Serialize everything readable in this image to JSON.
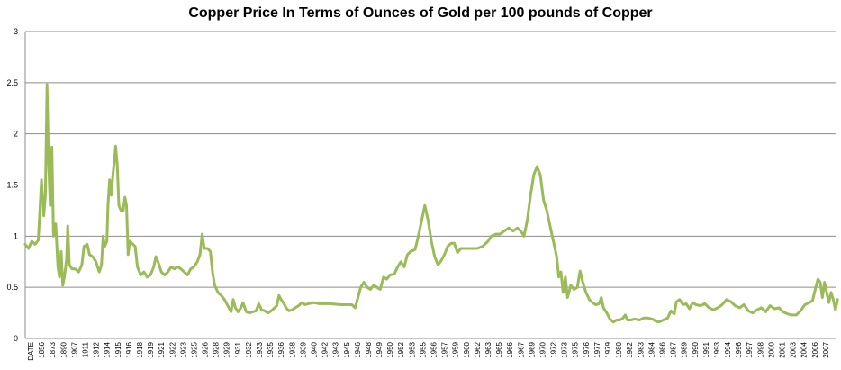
{
  "chart_data": {
    "type": "line",
    "title": "Copper Price In Terms of Ounces of Gold per 100 pounds of Copper",
    "xlabel": "",
    "ylabel": "",
    "ylim": [
      0,
      3
    ],
    "y_ticks": [
      "0",
      "0.5",
      "1",
      "1.5",
      "2",
      "2.5",
      "3"
    ],
    "grid": "horizontal",
    "legend": "none",
    "x_tick_labels": [
      "DATE",
      "1856",
      "1873",
      "1890",
      "1907",
      "1911",
      "1912",
      "1914",
      "1915",
      "1916",
      "1918",
      "1919",
      "1921",
      "1922",
      "1923",
      "1925",
      "1926",
      "1928",
      "1929",
      "1931",
      "1932",
      "1933",
      "1935",
      "1936",
      "1938",
      "1939",
      "1940",
      "1942",
      "1943",
      "1945",
      "1946",
      "1948",
      "1949",
      "1950",
      "1952",
      "1953",
      "1955",
      "1956",
      "1957",
      "1959",
      "1960",
      "1962",
      "1963",
      "1965",
      "1966",
      "1967",
      "1969",
      "1970",
      "1972",
      "1973",
      "1975",
      "1976",
      "1977",
      "1979",
      "1980",
      "1982",
      "1983",
      "1984",
      "1986",
      "1987",
      "1989",
      "1990",
      "1991",
      "1993",
      "1994",
      "1996",
      "1997",
      "1998",
      "2000",
      "2001",
      "2003",
      "2004",
      "2006",
      "2007"
    ],
    "series": [
      {
        "color": "#9bbb59",
        "points": [
          [
            0,
            0.92
          ],
          [
            0.3,
            0.88
          ],
          [
            0.6,
            0.95
          ],
          [
            0.9,
            0.92
          ],
          [
            1.2,
            0.96
          ],
          [
            1.5,
            1.55
          ],
          [
            1.7,
            1.2
          ],
          [
            1.85,
            1.4
          ],
          [
            2.0,
            2.48
          ],
          [
            2.15,
            1.7
          ],
          [
            2.3,
            1.3
          ],
          [
            2.45,
            1.87
          ],
          [
            2.6,
            1.0
          ],
          [
            2.8,
            1.12
          ],
          [
            3.0,
            0.7
          ],
          [
            3.15,
            0.6
          ],
          [
            3.3,
            0.85
          ],
          [
            3.45,
            0.52
          ],
          [
            3.6,
            0.6
          ],
          [
            3.8,
            0.78
          ],
          [
            3.9,
            1.1
          ],
          [
            4.05,
            0.72
          ],
          [
            4.3,
            0.68
          ],
          [
            4.6,
            0.68
          ],
          [
            4.9,
            0.65
          ],
          [
            5.2,
            0.72
          ],
          [
            5.4,
            0.9
          ],
          [
            5.7,
            0.92
          ],
          [
            5.9,
            0.82
          ],
          [
            6.2,
            0.8
          ],
          [
            6.5,
            0.75
          ],
          [
            6.8,
            0.65
          ],
          [
            7.0,
            0.72
          ],
          [
            7.15,
            1.0
          ],
          [
            7.3,
            0.9
          ],
          [
            7.5,
            0.95
          ],
          [
            7.6,
            1.3
          ],
          [
            7.75,
            1.55
          ],
          [
            7.9,
            1.4
          ],
          [
            8.05,
            1.6
          ],
          [
            8.2,
            1.75
          ],
          [
            8.3,
            1.88
          ],
          [
            8.45,
            1.7
          ],
          [
            8.6,
            1.3
          ],
          [
            8.8,
            1.25
          ],
          [
            9.0,
            1.25
          ],
          [
            9.15,
            1.38
          ],
          [
            9.3,
            1.3
          ],
          [
            9.45,
            0.82
          ],
          [
            9.6,
            0.95
          ],
          [
            9.8,
            0.93
          ],
          [
            10.1,
            0.9
          ],
          [
            10.3,
            0.7
          ],
          [
            10.6,
            0.62
          ],
          [
            10.9,
            0.65
          ],
          [
            11.2,
            0.6
          ],
          [
            11.5,
            0.62
          ],
          [
            11.8,
            0.7
          ],
          [
            12.0,
            0.8
          ],
          [
            12.2,
            0.75
          ],
          [
            12.5,
            0.65
          ],
          [
            12.8,
            0.62
          ],
          [
            13.1,
            0.65
          ],
          [
            13.4,
            0.7
          ],
          [
            13.7,
            0.68
          ],
          [
            14.0,
            0.7
          ],
          [
            14.3,
            0.68
          ],
          [
            14.6,
            0.65
          ],
          [
            14.9,
            0.62
          ],
          [
            15.2,
            0.68
          ],
          [
            15.5,
            0.7
          ],
          [
            15.8,
            0.75
          ],
          [
            16.05,
            0.82
          ],
          [
            16.25,
            1.02
          ],
          [
            16.45,
            0.88
          ],
          [
            16.75,
            0.88
          ],
          [
            17.0,
            0.85
          ],
          [
            17.2,
            0.65
          ],
          [
            17.4,
            0.52
          ],
          [
            17.7,
            0.45
          ],
          [
            18.0,
            0.42
          ],
          [
            18.3,
            0.38
          ],
          [
            18.6,
            0.32
          ],
          [
            18.9,
            0.26
          ],
          [
            19.1,
            0.38
          ],
          [
            19.3,
            0.3
          ],
          [
            19.55,
            0.26
          ],
          [
            19.8,
            0.3
          ],
          [
            20.0,
            0.35
          ],
          [
            20.3,
            0.26
          ],
          [
            20.6,
            0.25
          ],
          [
            20.9,
            0.26
          ],
          [
            21.2,
            0.27
          ],
          [
            21.45,
            0.34
          ],
          [
            21.7,
            0.28
          ],
          [
            22.0,
            0.27
          ],
          [
            22.3,
            0.25
          ],
          [
            22.6,
            0.27
          ],
          [
            22.9,
            0.3
          ],
          [
            23.1,
            0.32
          ],
          [
            23.3,
            0.42
          ],
          [
            23.5,
            0.38
          ],
          [
            23.7,
            0.35
          ],
          [
            23.95,
            0.3
          ],
          [
            24.2,
            0.27
          ],
          [
            24.5,
            0.28
          ],
          [
            24.8,
            0.3
          ],
          [
            25.1,
            0.32
          ],
          [
            25.4,
            0.35
          ],
          [
            25.7,
            0.33
          ],
          [
            26.0,
            0.34
          ],
          [
            26.5,
            0.35
          ],
          [
            27.0,
            0.34
          ],
          [
            28.0,
            0.34
          ],
          [
            29.0,
            0.33
          ],
          [
            30.0,
            0.33
          ],
          [
            30.3,
            0.3
          ],
          [
            30.5,
            0.38
          ],
          [
            30.8,
            0.5
          ],
          [
            31.1,
            0.55
          ],
          [
            31.4,
            0.5
          ],
          [
            31.7,
            0.48
          ],
          [
            32.0,
            0.52
          ],
          [
            32.3,
            0.5
          ],
          [
            32.6,
            0.48
          ],
          [
            32.9,
            0.6
          ],
          [
            33.2,
            0.58
          ],
          [
            33.5,
            0.62
          ],
          [
            33.9,
            0.63
          ],
          [
            34.2,
            0.7
          ],
          [
            34.5,
            0.75
          ],
          [
            34.8,
            0.7
          ],
          [
            35.1,
            0.82
          ],
          [
            35.4,
            0.85
          ],
          [
            35.8,
            0.87
          ],
          [
            36.1,
            1.0
          ],
          [
            36.4,
            1.15
          ],
          [
            36.7,
            1.3
          ],
          [
            37.0,
            1.15
          ],
          [
            37.3,
            0.95
          ],
          [
            37.6,
            0.8
          ],
          [
            37.9,
            0.72
          ],
          [
            38.2,
            0.76
          ],
          [
            38.5,
            0.82
          ],
          [
            38.8,
            0.9
          ],
          [
            39.1,
            0.93
          ],
          [
            39.4,
            0.93
          ],
          [
            39.7,
            0.84
          ],
          [
            40.0,
            0.88
          ],
          [
            40.5,
            0.88
          ],
          [
            41.0,
            0.88
          ],
          [
            41.5,
            0.88
          ],
          [
            42.0,
            0.9
          ],
          [
            42.5,
            0.95
          ],
          [
            42.8,
            1.0
          ],
          [
            43.2,
            1.02
          ],
          [
            43.6,
            1.02
          ],
          [
            44.0,
            1.05
          ],
          [
            44.4,
            1.08
          ],
          [
            44.8,
            1.05
          ],
          [
            45.2,
            1.08
          ],
          [
            45.5,
            1.05
          ],
          [
            45.8,
            1.0
          ],
          [
            46.1,
            1.15
          ],
          [
            46.4,
            1.4
          ],
          [
            46.7,
            1.6
          ],
          [
            47.0,
            1.68
          ],
          [
            47.3,
            1.6
          ],
          [
            47.6,
            1.35
          ],
          [
            47.9,
            1.25
          ],
          [
            48.2,
            1.1
          ],
          [
            48.5,
            0.95
          ],
          [
            48.8,
            0.8
          ],
          [
            49.0,
            0.6
          ],
          [
            49.2,
            0.65
          ],
          [
            49.4,
            0.45
          ],
          [
            49.6,
            0.6
          ],
          [
            49.8,
            0.4
          ],
          [
            50.1,
            0.52
          ],
          [
            50.4,
            0.48
          ],
          [
            50.7,
            0.5
          ],
          [
            50.95,
            0.66
          ],
          [
            51.2,
            0.55
          ],
          [
            51.5,
            0.45
          ],
          [
            51.8,
            0.38
          ],
          [
            52.1,
            0.35
          ],
          [
            52.4,
            0.33
          ],
          [
            52.7,
            0.34
          ],
          [
            52.9,
            0.4
          ],
          [
            53.1,
            0.3
          ],
          [
            53.4,
            0.25
          ],
          [
            53.7,
            0.19
          ],
          [
            54.0,
            0.16
          ],
          [
            54.3,
            0.18
          ],
          [
            54.6,
            0.18
          ],
          [
            54.9,
            0.2
          ],
          [
            55.1,
            0.23
          ],
          [
            55.3,
            0.18
          ],
          [
            55.6,
            0.18
          ],
          [
            56.0,
            0.19
          ],
          [
            56.4,
            0.18
          ],
          [
            56.8,
            0.2
          ],
          [
            57.2,
            0.2
          ],
          [
            57.6,
            0.19
          ],
          [
            57.9,
            0.17
          ],
          [
            58.2,
            0.16
          ],
          [
            58.6,
            0.18
          ],
          [
            59.0,
            0.2
          ],
          [
            59.3,
            0.27
          ],
          [
            59.6,
            0.24
          ],
          [
            59.8,
            0.36
          ],
          [
            60.1,
            0.38
          ],
          [
            60.4,
            0.33
          ],
          [
            60.7,
            0.34
          ],
          [
            61.0,
            0.29
          ],
          [
            61.3,
            0.35
          ],
          [
            61.6,
            0.33
          ],
          [
            62.0,
            0.32
          ],
          [
            62.4,
            0.34
          ],
          [
            62.8,
            0.3
          ],
          [
            63.2,
            0.28
          ],
          [
            63.6,
            0.3
          ],
          [
            64.0,
            0.33
          ],
          [
            64.4,
            0.38
          ],
          [
            64.8,
            0.36
          ],
          [
            65.2,
            0.32
          ],
          [
            65.6,
            0.3
          ],
          [
            66.0,
            0.33
          ],
          [
            66.4,
            0.27
          ],
          [
            66.8,
            0.25
          ],
          [
            67.2,
            0.28
          ],
          [
            67.6,
            0.3
          ],
          [
            68.0,
            0.26
          ],
          [
            68.4,
            0.32
          ],
          [
            68.8,
            0.29
          ],
          [
            69.2,
            0.3
          ],
          [
            69.6,
            0.26
          ],
          [
            70.0,
            0.24
          ],
          [
            70.4,
            0.23
          ],
          [
            70.8,
            0.23
          ],
          [
            71.2,
            0.27
          ],
          [
            71.6,
            0.33
          ],
          [
            72.0,
            0.35
          ],
          [
            72.3,
            0.37
          ],
          [
            72.6,
            0.5
          ],
          [
            72.8,
            0.58
          ],
          [
            73.0,
            0.55
          ],
          [
            73.2,
            0.4
          ],
          [
            73.4,
            0.55
          ],
          [
            73.6,
            0.45
          ],
          [
            73.8,
            0.35
          ],
          [
            74.0,
            0.45
          ],
          [
            74.2,
            0.38
          ],
          [
            74.4,
            0.28
          ],
          [
            74.6,
            0.38
          ]
        ]
      }
    ]
  }
}
